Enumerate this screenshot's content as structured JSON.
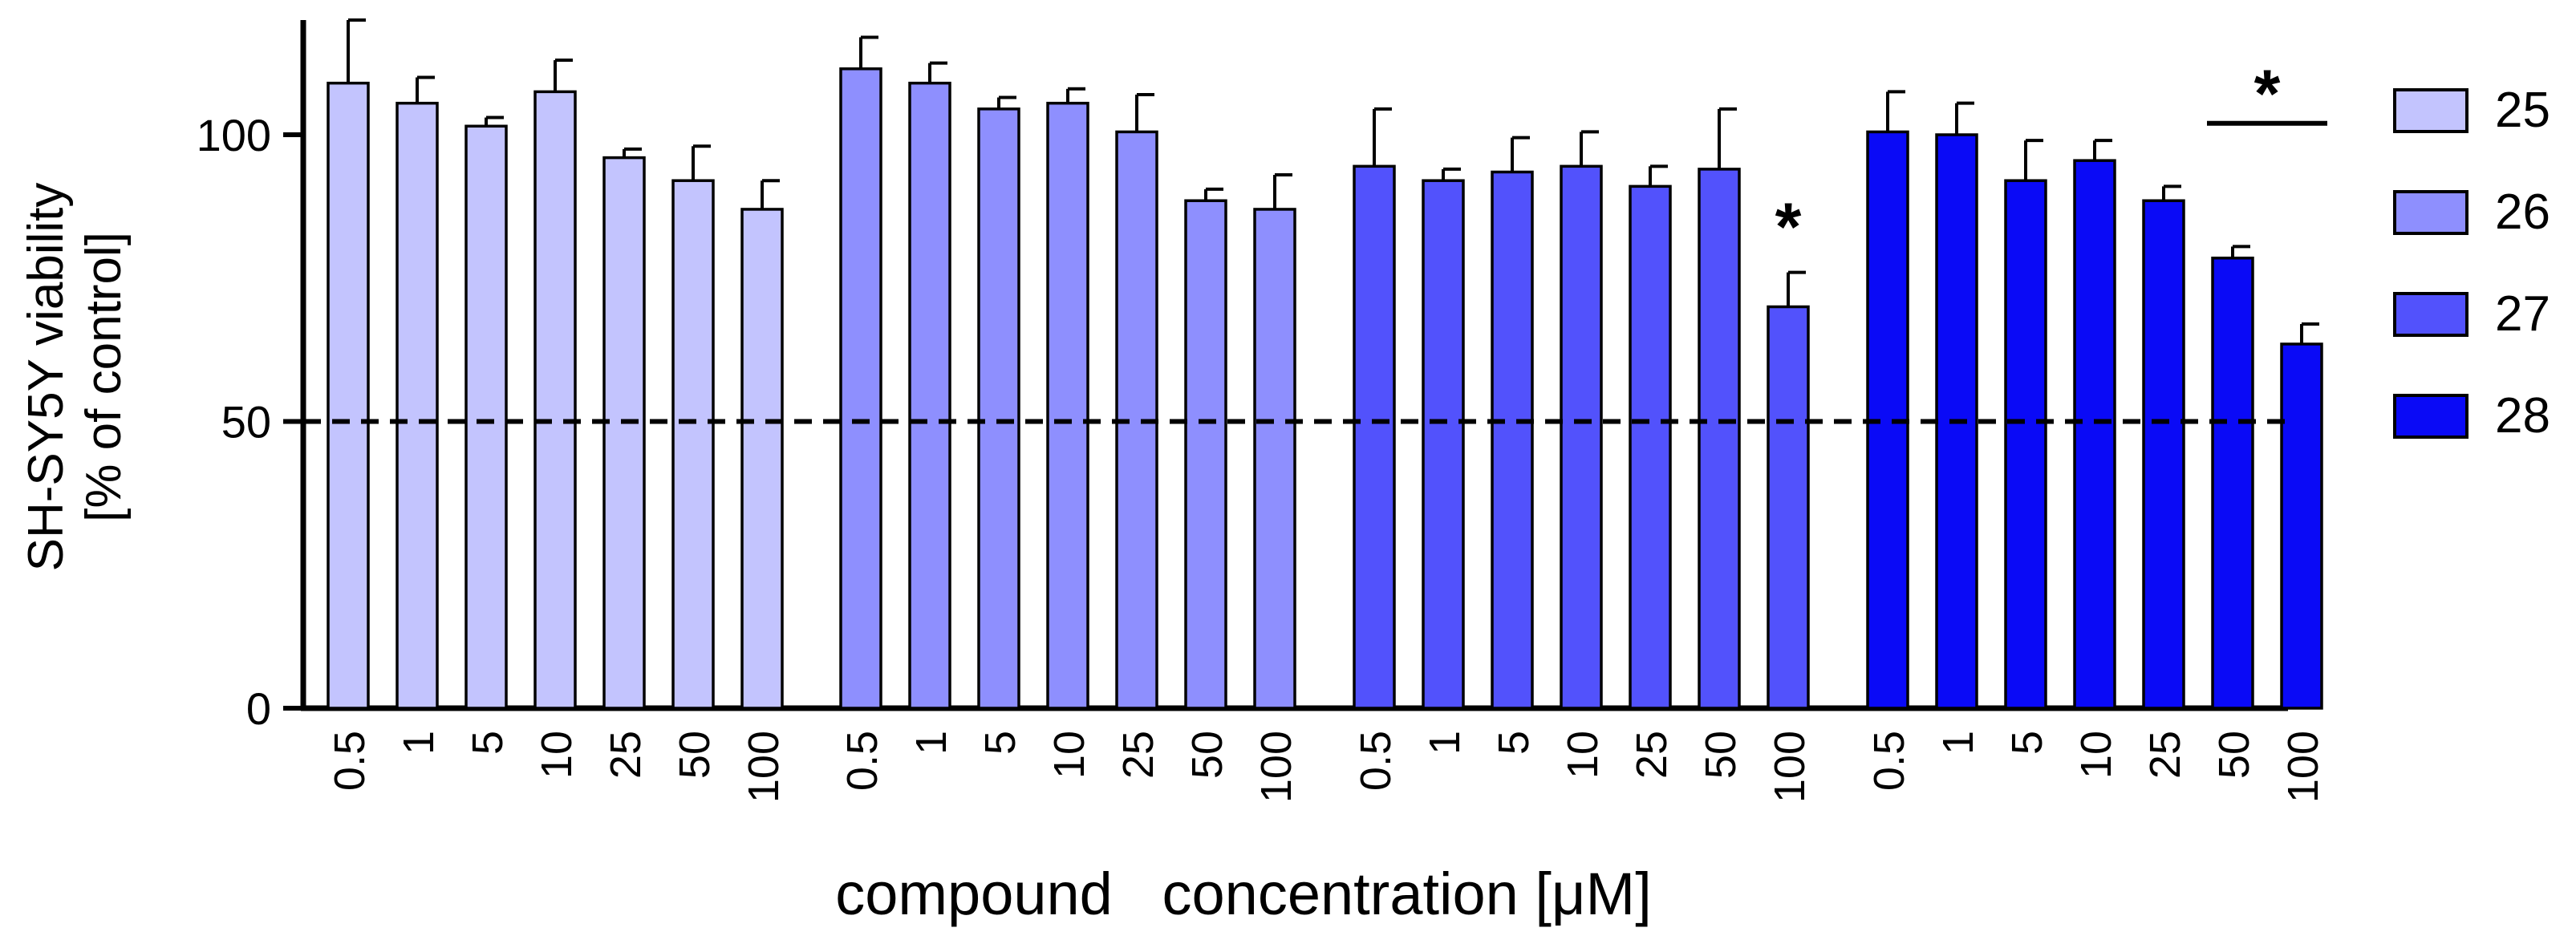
{
  "chart_data": {
    "type": "bar",
    "title": "",
    "ylabel": [
      "SH-SY5Y viability",
      "[% of control]"
    ],
    "xlabel": "compound   concentration [μM]",
    "ylim": [
      0,
      120
    ],
    "yticks": [
      0,
      50,
      100
    ],
    "reference_line": {
      "y": 50,
      "style": "dashed"
    },
    "categories": [
      "0.5",
      "1",
      "5",
      "10",
      "25",
      "50",
      "100"
    ],
    "series": [
      {
        "name": "25",
        "color": "#c3c4fe",
        "values": [
          109,
          105.5,
          101.5,
          107.5,
          96,
          92,
          87
        ],
        "errors": [
          11,
          4.5,
          1.5,
          5.5,
          1.5,
          6,
          5
        ]
      },
      {
        "name": "26",
        "color": "#8e8ffe",
        "values": [
          111.5,
          109,
          104.5,
          105.5,
          100.5,
          88.5,
          87
        ],
        "errors": [
          5.5,
          3.5,
          2,
          2.5,
          6.5,
          2,
          6
        ]
      },
      {
        "name": "27",
        "color": "#5252fc",
        "values": [
          94.5,
          92,
          93.5,
          94.5,
          91,
          94,
          70
        ],
        "errors": [
          10,
          2,
          6,
          6,
          3.5,
          10.5,
          6
        ]
      },
      {
        "name": "28",
        "color": "#0a0af6",
        "values": [
          100.5,
          100,
          92,
          95.5,
          88.5,
          78.5,
          63.5
        ],
        "errors": [
          7,
          5.5,
          7,
          3.5,
          2.5,
          2,
          3.5
        ]
      }
    ],
    "annotations": [
      {
        "text": "*",
        "series": "27",
        "category": "100"
      },
      {
        "text": "*",
        "series": "28",
        "categories": [
          "50",
          "100"
        ],
        "bracket": true
      }
    ],
    "legend": {
      "position": "right",
      "entries": [
        "25",
        "26",
        "27",
        "28"
      ]
    }
  }
}
